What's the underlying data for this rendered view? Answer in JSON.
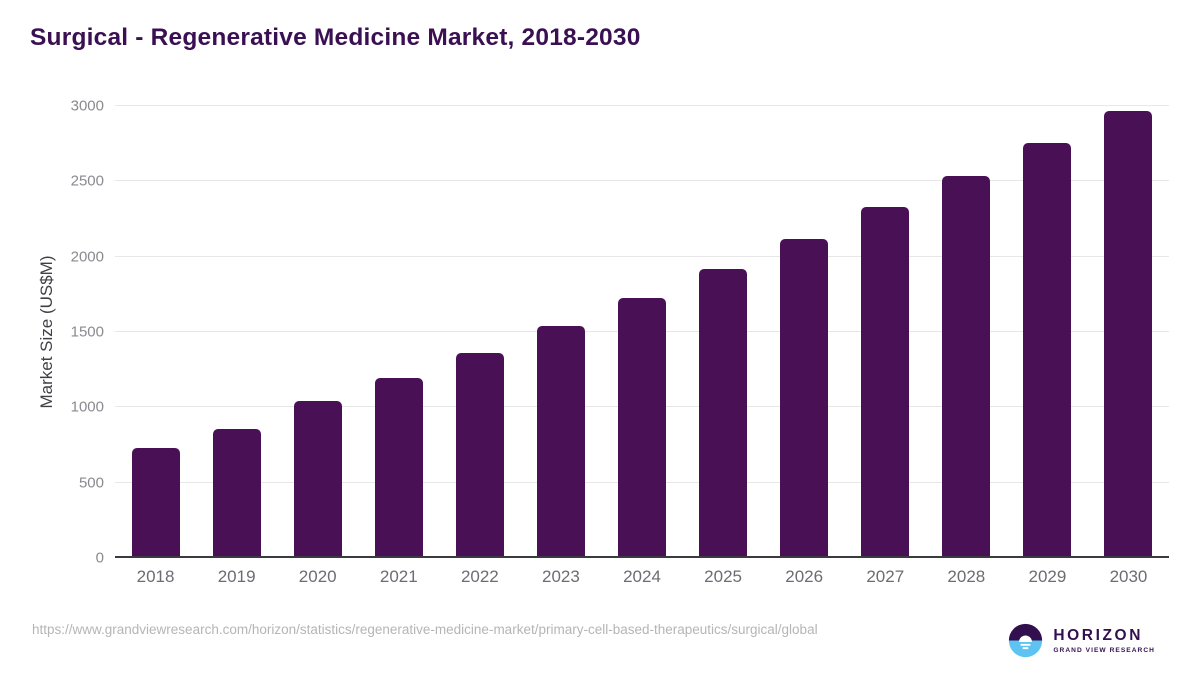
{
  "page": {
    "source_url": "https://www.grandviewresearch.com/horizon/statistics/regenerative-medicine-market/primary-cell-based-therapeutics/surgical/global"
  },
  "logo": {
    "name": "HORIZON",
    "subtitle": "GRAND VIEW RESEARCH",
    "colors": {
      "purple": "#32104F",
      "blue": "#5FC3F1",
      "white": "#FFFFFF"
    }
  },
  "chart_data": {
    "type": "bar",
    "title": "Surgical - Regenerative Medicine Market, 2018-2030",
    "categories": [
      "2018",
      "2019",
      "2020",
      "2021",
      "2022",
      "2023",
      "2024",
      "2025",
      "2026",
      "2027",
      "2028",
      "2029",
      "2030"
    ],
    "values": [
      730,
      855,
      1040,
      1195,
      1360,
      1540,
      1725,
      1920,
      2115,
      2330,
      2535,
      2755,
      2965
    ],
    "xlabel": "",
    "ylabel": "Market Size (US$M)",
    "ylim": [
      0,
      3000
    ],
    "y_ticks": [
      0,
      500,
      1000,
      1500,
      2000,
      2500,
      3000
    ],
    "grid": true,
    "legend": "none",
    "bar_color": "#4A1056",
    "title_color": "#3B1053",
    "gridline_color": "#E7E7EA",
    "axis_color": "#3A3A41"
  }
}
